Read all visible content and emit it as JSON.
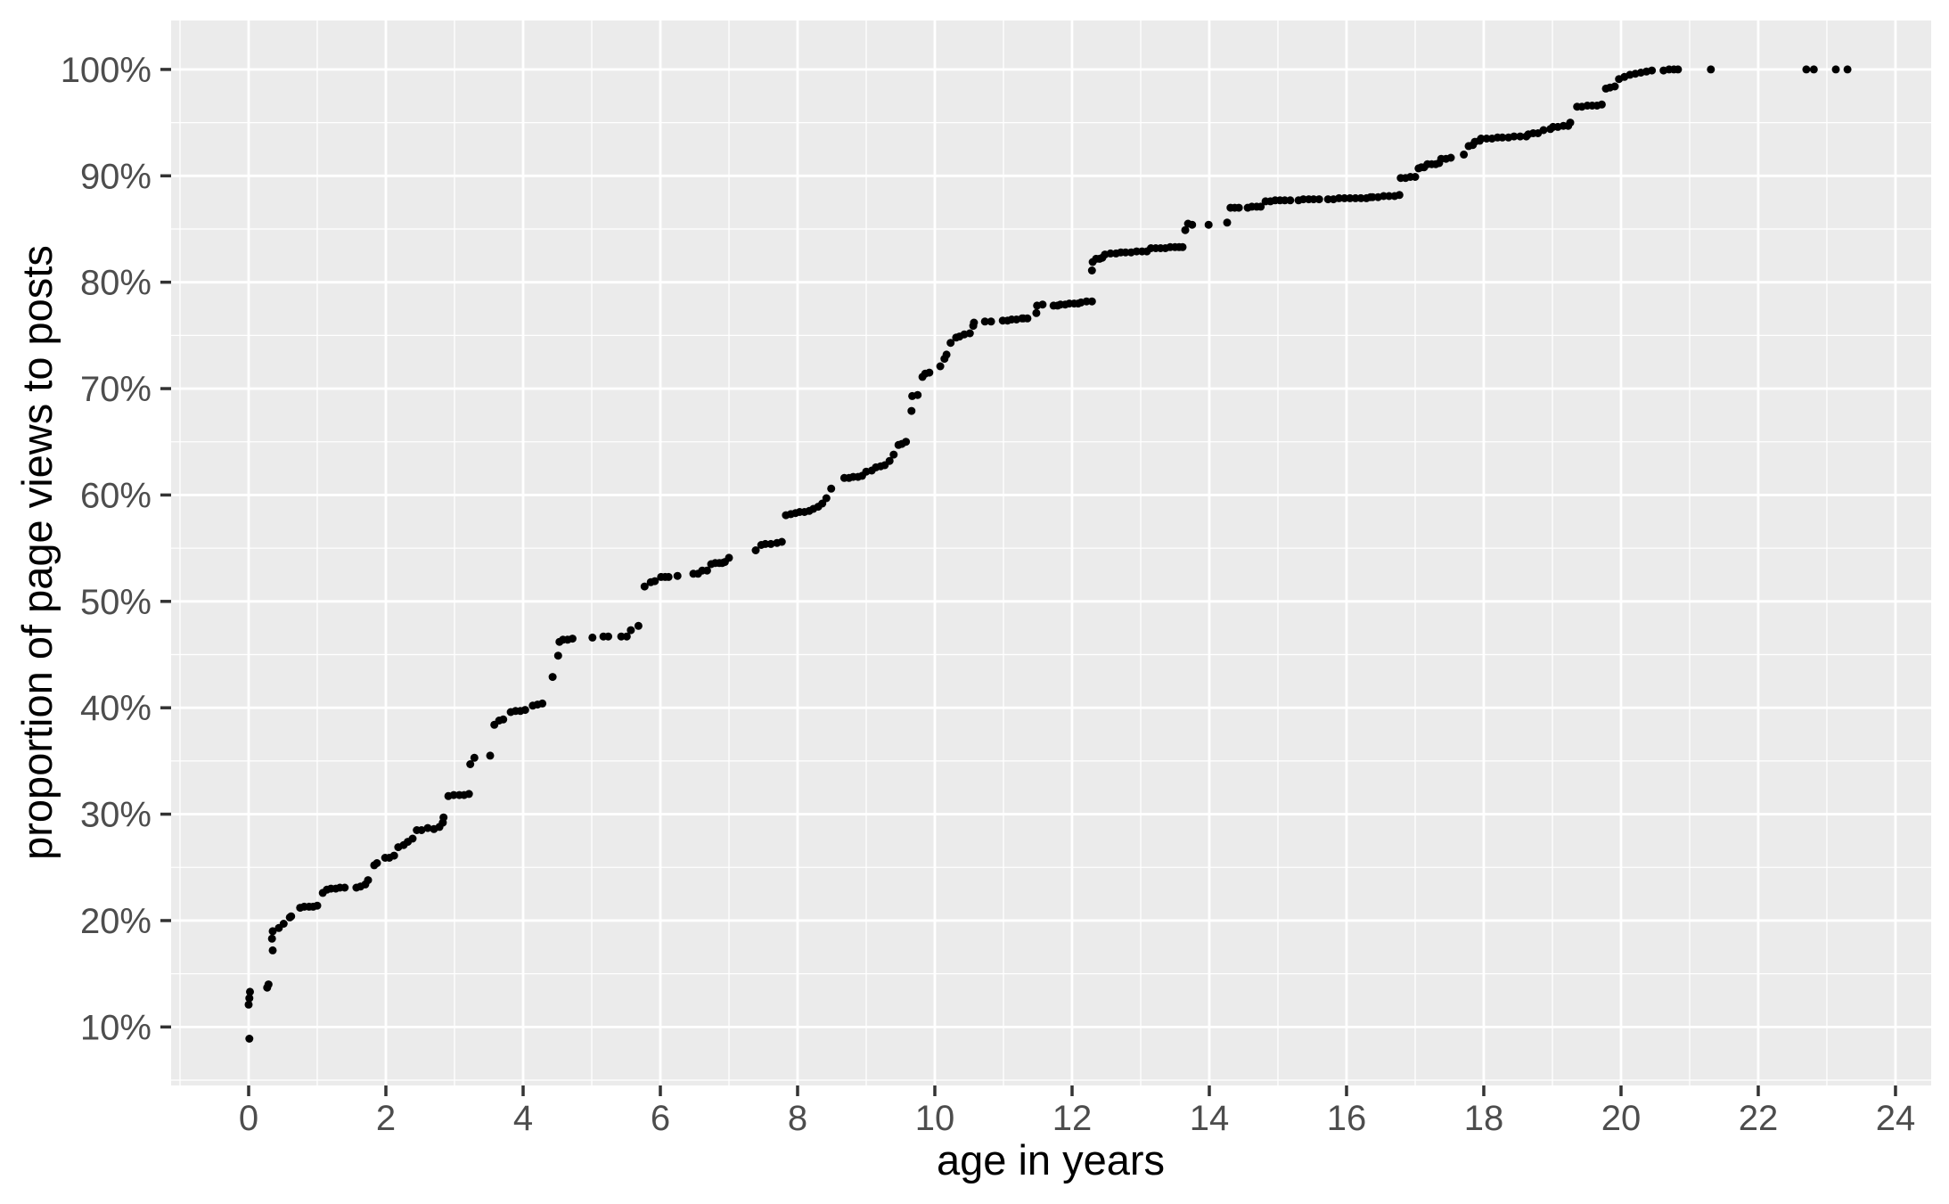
{
  "chart_data": {
    "type": "scatter",
    "title": "",
    "xlabel": "age in years",
    "ylabel": "proportion of page views to posts",
    "xlim": [
      -1.13,
      24.52
    ],
    "ylim": [
      4.5,
      104.6
    ],
    "grid": "on",
    "legend": "none",
    "x_ticks": [
      0,
      2,
      4,
      6,
      8,
      10,
      12,
      14,
      16,
      18,
      20,
      22,
      24
    ],
    "x_tick_labels": [
      "0",
      "2",
      "4",
      "6",
      "8",
      "10",
      "12",
      "14",
      "16",
      "18",
      "20",
      "22",
      "24"
    ],
    "x_minor": [
      -1,
      1,
      3,
      5,
      7,
      9,
      11,
      13,
      15,
      17,
      19,
      21,
      23
    ],
    "y_ticks": [
      10,
      20,
      30,
      40,
      50,
      60,
      70,
      80,
      90,
      100
    ],
    "y_tick_labels": [
      "10%",
      "20%",
      "30%",
      "40%",
      "50%",
      "60%",
      "70%",
      "80%",
      "90%",
      "100%"
    ],
    "y_minor": [
      5,
      15,
      25,
      35,
      45,
      55,
      65,
      75,
      85,
      95
    ],
    "colors": {
      "panel_bg": "#EBEBEB",
      "grid": "#FFFFFF",
      "point": "#000000",
      "axis_text": "#4D4D4D",
      "axis_title": "#000000",
      "tick_mark": "#333333",
      "outer_bg": "#FFFFFF"
    },
    "point_radius": 4.5,
    "points": [
      [
        0.01,
        8.9
      ],
      [
        0.0,
        12.1
      ],
      [
        0.01,
        12.7
      ],
      [
        0.02,
        13.3
      ],
      [
        0.27,
        13.7
      ],
      [
        0.29,
        14.0
      ],
      [
        0.35,
        17.2
      ],
      [
        0.34,
        18.3
      ],
      [
        0.35,
        19.0
      ],
      [
        0.44,
        19.3
      ],
      [
        0.51,
        19.7
      ],
      [
        0.6,
        20.3
      ],
      [
        0.62,
        20.4
      ],
      [
        0.75,
        21.2
      ],
      [
        0.81,
        21.3
      ],
      [
        0.88,
        21.3
      ],
      [
        0.94,
        21.3
      ],
      [
        1.0,
        21.4
      ],
      [
        1.08,
        22.6
      ],
      [
        1.14,
        22.9
      ],
      [
        1.2,
        23.0
      ],
      [
        1.27,
        23.0
      ],
      [
        1.33,
        23.1
      ],
      [
        1.4,
        23.1
      ],
      [
        1.57,
        23.1
      ],
      [
        1.63,
        23.2
      ],
      [
        1.7,
        23.4
      ],
      [
        1.74,
        23.8
      ],
      [
        1.83,
        25.2
      ],
      [
        1.87,
        25.4
      ],
      [
        1.99,
        25.9
      ],
      [
        2.05,
        25.9
      ],
      [
        2.12,
        26.1
      ],
      [
        2.18,
        26.9
      ],
      [
        2.26,
        27.1
      ],
      [
        2.32,
        27.4
      ],
      [
        2.39,
        27.7
      ],
      [
        2.45,
        28.5
      ],
      [
        2.52,
        28.5
      ],
      [
        2.61,
        28.7
      ],
      [
        2.7,
        28.6
      ],
      [
        2.78,
        28.8
      ],
      [
        2.83,
        29.2
      ],
      [
        2.84,
        29.7
      ],
      [
        2.91,
        31.7
      ],
      [
        2.99,
        31.8
      ],
      [
        3.07,
        31.8
      ],
      [
        3.14,
        31.8
      ],
      [
        3.21,
        31.9
      ],
      [
        3.23,
        34.7
      ],
      [
        3.29,
        35.3
      ],
      [
        3.52,
        35.5
      ],
      [
        3.58,
        38.4
      ],
      [
        3.65,
        38.8
      ],
      [
        3.71,
        38.9
      ],
      [
        3.82,
        39.6
      ],
      [
        3.89,
        39.7
      ],
      [
        3.96,
        39.7
      ],
      [
        4.03,
        39.8
      ],
      [
        4.14,
        40.2
      ],
      [
        4.21,
        40.3
      ],
      [
        4.28,
        40.4
      ],
      [
        4.43,
        42.9
      ],
      [
        4.51,
        44.9
      ],
      [
        4.53,
        46.2
      ],
      [
        4.58,
        46.4
      ],
      [
        4.65,
        46.4
      ],
      [
        4.72,
        46.5
      ],
      [
        5.01,
        46.6
      ],
      [
        5.17,
        46.7
      ],
      [
        5.24,
        46.7
      ],
      [
        5.43,
        46.7
      ],
      [
        5.51,
        46.7
      ],
      [
        5.57,
        47.3
      ],
      [
        5.68,
        47.7
      ],
      [
        5.77,
        51.4
      ],
      [
        5.86,
        51.8
      ],
      [
        5.92,
        51.9
      ],
      [
        6.01,
        52.3
      ],
      [
        6.07,
        52.3
      ],
      [
        6.12,
        52.3
      ],
      [
        6.25,
        52.4
      ],
      [
        6.48,
        52.6
      ],
      [
        6.55,
        52.6
      ],
      [
        6.61,
        52.9
      ],
      [
        6.68,
        52.9
      ],
      [
        6.74,
        53.5
      ],
      [
        6.8,
        53.6
      ],
      [
        6.86,
        53.6
      ],
      [
        6.9,
        53.6
      ],
      [
        6.94,
        53.7
      ],
      [
        7.0,
        54.1
      ],
      [
        7.39,
        54.8
      ],
      [
        7.47,
        55.3
      ],
      [
        7.53,
        55.4
      ],
      [
        7.61,
        55.4
      ],
      [
        7.7,
        55.5
      ],
      [
        7.77,
        55.6
      ],
      [
        7.83,
        58.1
      ],
      [
        7.9,
        58.2
      ],
      [
        7.97,
        58.3
      ],
      [
        8.03,
        58.4
      ],
      [
        8.1,
        58.4
      ],
      [
        8.17,
        58.5
      ],
      [
        8.23,
        58.7
      ],
      [
        8.3,
        58.9
      ],
      [
        8.36,
        59.2
      ],
      [
        8.42,
        59.7
      ],
      [
        8.49,
        60.6
      ],
      [
        8.68,
        61.6
      ],
      [
        8.75,
        61.6
      ],
      [
        8.81,
        61.7
      ],
      [
        8.88,
        61.7
      ],
      [
        8.94,
        61.8
      ],
      [
        9.0,
        62.2
      ],
      [
        9.08,
        62.3
      ],
      [
        9.14,
        62.6
      ],
      [
        9.21,
        62.7
      ],
      [
        9.27,
        62.8
      ],
      [
        9.34,
        63.2
      ],
      [
        9.4,
        63.8
      ],
      [
        9.47,
        64.7
      ],
      [
        9.52,
        64.8
      ],
      [
        9.58,
        65.0
      ],
      [
        9.66,
        67.9
      ],
      [
        9.67,
        69.3
      ],
      [
        9.75,
        69.4
      ],
      [
        9.82,
        71.1
      ],
      [
        9.86,
        71.4
      ],
      [
        9.92,
        71.5
      ],
      [
        10.08,
        72.1
      ],
      [
        10.14,
        72.8
      ],
      [
        10.17,
        73.2
      ],
      [
        10.23,
        74.3
      ],
      [
        10.31,
        74.8
      ],
      [
        10.36,
        74.9
      ],
      [
        10.43,
        75.1
      ],
      [
        10.51,
        75.2
      ],
      [
        10.56,
        75.9
      ],
      [
        10.57,
        76.2
      ],
      [
        10.73,
        76.3
      ],
      [
        10.82,
        76.3
      ],
      [
        10.99,
        76.4
      ],
      [
        11.06,
        76.4
      ],
      [
        11.12,
        76.5
      ],
      [
        11.19,
        76.5
      ],
      [
        11.27,
        76.6
      ],
      [
        11.29,
        76.6
      ],
      [
        11.35,
        76.6
      ],
      [
        11.48,
        77.1
      ],
      [
        11.49,
        77.8
      ],
      [
        11.57,
        77.9
      ],
      [
        11.73,
        77.8
      ],
      [
        11.79,
        77.8
      ],
      [
        11.83,
        77.9
      ],
      [
        11.9,
        77.9
      ],
      [
        11.96,
        78.0
      ],
      [
        12.03,
        78.0
      ],
      [
        12.09,
        78.0
      ],
      [
        12.13,
        78.1
      ],
      [
        12.21,
        78.2
      ],
      [
        12.29,
        78.2
      ],
      [
        12.29,
        81.1
      ],
      [
        12.3,
        81.9
      ],
      [
        12.35,
        82.2
      ],
      [
        12.4,
        82.2
      ],
      [
        12.44,
        82.3
      ],
      [
        12.48,
        82.6
      ],
      [
        12.56,
        82.7
      ],
      [
        12.64,
        82.7
      ],
      [
        12.71,
        82.8
      ],
      [
        12.78,
        82.8
      ],
      [
        12.86,
        82.8
      ],
      [
        12.94,
        82.9
      ],
      [
        13.02,
        82.9
      ],
      [
        13.09,
        82.9
      ],
      [
        13.15,
        83.2
      ],
      [
        13.22,
        83.2
      ],
      [
        13.29,
        83.2
      ],
      [
        13.36,
        83.2
      ],
      [
        13.43,
        83.3
      ],
      [
        13.5,
        83.3
      ],
      [
        13.56,
        83.3
      ],
      [
        13.61,
        83.3
      ],
      [
        13.65,
        84.9
      ],
      [
        13.69,
        85.5
      ],
      [
        13.75,
        85.4
      ],
      [
        13.99,
        85.4
      ],
      [
        14.26,
        85.6
      ],
      [
        14.31,
        87.0
      ],
      [
        14.37,
        87.0
      ],
      [
        14.43,
        87.0
      ],
      [
        14.56,
        87.0
      ],
      [
        14.62,
        87.1
      ],
      [
        14.69,
        87.1
      ],
      [
        14.75,
        87.1
      ],
      [
        14.82,
        87.6
      ],
      [
        14.89,
        87.6
      ],
      [
        14.96,
        87.7
      ],
      [
        15.03,
        87.7
      ],
      [
        15.1,
        87.7
      ],
      [
        15.18,
        87.7
      ],
      [
        15.3,
        87.7
      ],
      [
        15.37,
        87.8
      ],
      [
        15.45,
        87.8
      ],
      [
        15.52,
        87.8
      ],
      [
        15.6,
        87.8
      ],
      [
        15.73,
        87.8
      ],
      [
        15.81,
        87.8
      ],
      [
        15.89,
        87.9
      ],
      [
        15.97,
        87.9
      ],
      [
        16.05,
        87.9
      ],
      [
        16.13,
        87.9
      ],
      [
        16.21,
        87.9
      ],
      [
        16.29,
        87.9
      ],
      [
        16.35,
        88.0
      ],
      [
        16.38,
        88.0
      ],
      [
        16.46,
        88.0
      ],
      [
        16.54,
        88.1
      ],
      [
        16.62,
        88.1
      ],
      [
        16.7,
        88.1
      ],
      [
        16.77,
        88.2
      ],
      [
        16.79,
        89.8
      ],
      [
        16.86,
        89.8
      ],
      [
        16.93,
        89.9
      ],
      [
        17.0,
        89.9
      ],
      [
        17.05,
        90.7
      ],
      [
        17.09,
        90.8
      ],
      [
        17.13,
        90.8
      ],
      [
        17.18,
        91.1
      ],
      [
        17.24,
        91.1
      ],
      [
        17.3,
        91.1
      ],
      [
        17.35,
        91.2
      ],
      [
        17.38,
        91.6
      ],
      [
        17.45,
        91.6
      ],
      [
        17.52,
        91.7
      ],
      [
        17.71,
        92.0
      ],
      [
        17.78,
        92.8
      ],
      [
        17.84,
        92.9
      ],
      [
        17.87,
        93.2
      ],
      [
        17.94,
        93.3
      ],
      [
        17.96,
        93.5
      ],
      [
        18.04,
        93.5
      ],
      [
        18.12,
        93.5
      ],
      [
        18.2,
        93.6
      ],
      [
        18.27,
        93.6
      ],
      [
        18.36,
        93.6
      ],
      [
        18.44,
        93.7
      ],
      [
        18.53,
        93.7
      ],
      [
        18.62,
        93.7
      ],
      [
        18.65,
        93.9
      ],
      [
        18.72,
        94.0
      ],
      [
        18.79,
        94.0
      ],
      [
        18.87,
        94.3
      ],
      [
        18.97,
        94.4
      ],
      [
        19.01,
        94.6
      ],
      [
        19.08,
        94.6
      ],
      [
        19.16,
        94.7
      ],
      [
        19.23,
        94.7
      ],
      [
        19.26,
        95.0
      ],
      [
        19.36,
        96.5
      ],
      [
        19.43,
        96.5
      ],
      [
        19.51,
        96.6
      ],
      [
        19.58,
        96.6
      ],
      [
        19.65,
        96.6
      ],
      [
        19.72,
        96.7
      ],
      [
        19.78,
        98.2
      ],
      [
        19.84,
        98.3
      ],
      [
        19.91,
        98.4
      ],
      [
        19.97,
        99.1
      ],
      [
        20.05,
        99.3
      ],
      [
        20.13,
        99.5
      ],
      [
        20.21,
        99.6
      ],
      [
        20.29,
        99.7
      ],
      [
        20.37,
        99.8
      ],
      [
        20.45,
        99.9
      ],
      [
        20.62,
        99.9
      ],
      [
        20.7,
        100
      ],
      [
        20.77,
        100
      ],
      [
        20.83,
        100
      ],
      [
        21.31,
        100
      ],
      [
        22.7,
        100
      ],
      [
        22.81,
        100
      ],
      [
        23.13,
        100
      ],
      [
        23.3,
        100
      ]
    ]
  }
}
